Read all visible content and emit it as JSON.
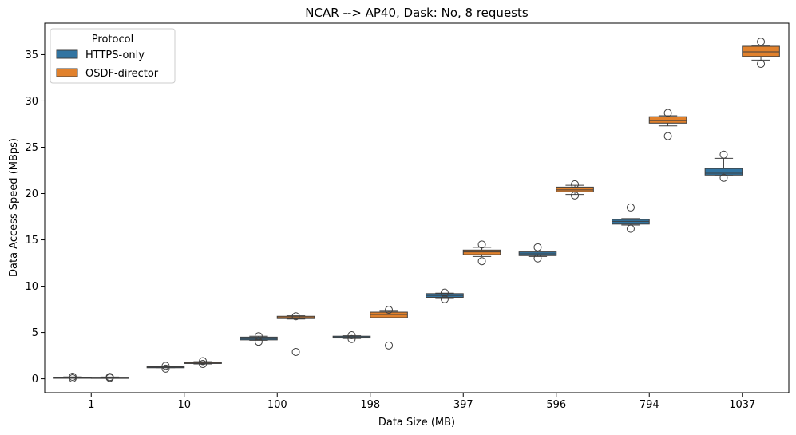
{
  "chart_data": {
    "type": "box",
    "title": "NCAR --> AP40, Dask: No, 8 requests",
    "xlabel": "Data Size (MB)",
    "ylabel": "Data Access Speed (MBps)",
    "ylim": [
      -1.5,
      38.4
    ],
    "yticks": [
      0,
      5,
      10,
      15,
      20,
      25,
      30,
      35
    ],
    "categories": [
      "1",
      "10",
      "100",
      "198",
      "397",
      "596",
      "794",
      "1037"
    ],
    "legend": {
      "title": "Protocol",
      "position": "top-left"
    },
    "series": [
      {
        "name": "HTTPS-only",
        "color": "#3274a1",
        "boxes": [
          {
            "q1": 0.12,
            "median": 0.15,
            "q3": 0.18,
            "wlo": 0.1,
            "whi": 0.2,
            "outliers": [
              0.05,
              0.22
            ]
          },
          {
            "q1": 1.22,
            "median": 1.27,
            "q3": 1.32,
            "wlo": 1.2,
            "whi": 1.35,
            "outliers": [
              1.1,
              1.4
            ]
          },
          {
            "q1": 4.2,
            "median": 4.35,
            "q3": 4.5,
            "wlo": 4.15,
            "whi": 4.6,
            "outliers": [
              4.0,
              4.6
            ]
          },
          {
            "q1": 4.4,
            "median": 4.5,
            "q3": 4.6,
            "wlo": 4.35,
            "whi": 4.65,
            "outliers": [
              4.3,
              4.7
            ]
          },
          {
            "q1": 8.8,
            "median": 9.0,
            "q3": 9.2,
            "wlo": 8.75,
            "whi": 9.25,
            "outliers": [
              8.6,
              9.3
            ]
          },
          {
            "q1": 13.3,
            "median": 13.5,
            "q3": 13.7,
            "wlo": 13.2,
            "whi": 13.8,
            "outliers": [
              13.0,
              14.2
            ]
          },
          {
            "q1": 16.7,
            "median": 17.0,
            "q3": 17.2,
            "wlo": 16.6,
            "whi": 17.3,
            "outliers": [
              16.2,
              18.5
            ]
          },
          {
            "q1": 22.0,
            "median": 22.2,
            "q3": 22.7,
            "wlo": 22.0,
            "whi": 23.8,
            "outliers": [
              21.7,
              24.2
            ]
          }
        ]
      },
      {
        "name": "OSDF-director",
        "color": "#e1812c",
        "boxes": [
          {
            "q1": 0.13,
            "median": 0.15,
            "q3": 0.17,
            "wlo": 0.11,
            "whi": 0.19,
            "outliers": [
              0.1,
              0.2
            ]
          },
          {
            "q1": 1.65,
            "median": 1.72,
            "q3": 1.8,
            "wlo": 1.6,
            "whi": 1.85,
            "outliers": [
              1.6,
              1.9
            ]
          },
          {
            "q1": 6.5,
            "median": 6.6,
            "q3": 6.75,
            "wlo": 6.45,
            "whi": 6.8,
            "outliers": [
              2.9,
              6.75
            ]
          },
          {
            "q1": 6.6,
            "median": 6.95,
            "q3": 7.2,
            "wlo": 6.6,
            "whi": 7.3,
            "outliers": [
              3.6,
              7.45
            ]
          },
          {
            "q1": 13.4,
            "median": 13.7,
            "q3": 13.9,
            "wlo": 13.2,
            "whi": 14.2,
            "outliers": [
              12.7,
              14.5
            ]
          },
          {
            "q1": 20.2,
            "median": 20.4,
            "q3": 20.7,
            "wlo": 19.9,
            "whi": 20.9,
            "outliers": [
              19.8,
              21.0
            ]
          },
          {
            "q1": 27.6,
            "median": 27.9,
            "q3": 28.3,
            "wlo": 27.3,
            "whi": 28.4,
            "outliers": [
              26.2,
              28.7
            ]
          },
          {
            "q1": 34.8,
            "median": 35.3,
            "q3": 35.9,
            "wlo": 34.4,
            "whi": 36.0,
            "outliers": [
              34.0,
              36.4
            ]
          }
        ]
      }
    ]
  }
}
